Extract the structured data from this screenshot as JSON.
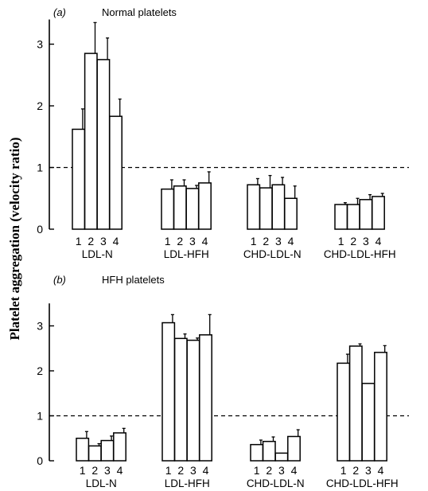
{
  "ylabel": "Platelet aggregation (velocity ratio)",
  "chart_data": [
    {
      "type": "bar",
      "panel": "(a)",
      "title": "Normal platelets",
      "categories": [
        "LDL-N",
        "LDL-HFH",
        "CHD-LDL-N",
        "CHD-LDL-HFH"
      ],
      "bar_labels": [
        "1",
        "2",
        "3",
        "4"
      ],
      "values": [
        [
          1.62,
          2.85,
          2.75,
          1.83
        ],
        [
          0.65,
          0.7,
          0.66,
          0.75
        ],
        [
          0.72,
          0.67,
          0.72,
          0.5
        ],
        [
          0.4,
          0.4,
          0.48,
          0.53
        ]
      ],
      "errors": [
        [
          0.33,
          0.5,
          0.35,
          0.28
        ],
        [
          0.15,
          0.1,
          0.05,
          0.18
        ],
        [
          0.1,
          0.2,
          0.12,
          0.2
        ],
        [
          0.03,
          0.1,
          0.08,
          0.05
        ]
      ],
      "yticks": [
        0,
        1,
        2,
        3
      ],
      "ylim": [
        0,
        3.4
      ],
      "reference_line": 1
    },
    {
      "type": "bar",
      "panel": "(b)",
      "title": "HFH platelets",
      "categories": [
        "LDL-N",
        "LDL-HFH",
        "CHD-LDL-N",
        "CHD-LDL-HFH"
      ],
      "bar_labels": [
        "1",
        "2",
        "3",
        "4"
      ],
      "values": [
        [
          0.5,
          0.33,
          0.45,
          0.62
        ],
        [
          3.07,
          2.72,
          2.68,
          2.8
        ],
        [
          0.36,
          0.43,
          0.17,
          0.54
        ],
        [
          2.17,
          2.55,
          1.72,
          2.41
        ]
      ],
      "errors": [
        [
          0.15,
          0.05,
          0.1,
          0.1
        ],
        [
          0.18,
          0.1,
          0.05,
          0.45
        ],
        [
          0.1,
          0.1,
          0,
          0.15
        ],
        [
          0.2,
          0.05,
          0,
          0.15
        ]
      ],
      "yticks": [
        0,
        1,
        2,
        3
      ],
      "ylim": [
        0,
        3.5
      ],
      "reference_line": 1
    }
  ]
}
